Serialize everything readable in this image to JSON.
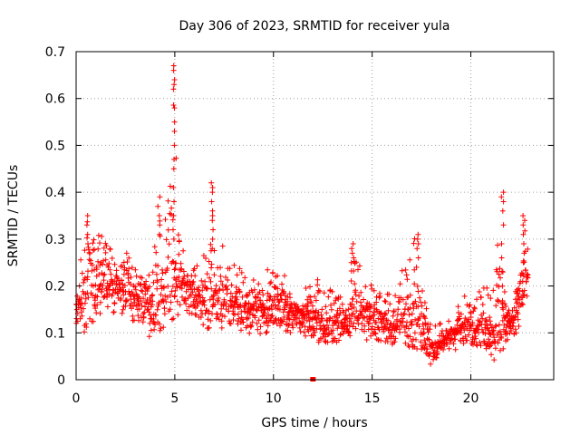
{
  "chart_data": {
    "type": "scatter",
    "title": "Day 306 of 2023, SRMTID for receiver yula",
    "xlabel": "GPS time / hours",
    "ylabel": "SRMTID / TECUs",
    "xlim": [
      0,
      24.2
    ],
    "ylim": [
      0,
      0.7
    ],
    "xticks": [
      0,
      5,
      10,
      15,
      20
    ],
    "xtick_labels": [
      "0",
      "5",
      "10",
      "15",
      "20"
    ],
    "yticks": [
      0,
      0.1,
      0.2,
      0.3,
      0.4,
      0.5,
      0.6,
      0.7
    ],
    "ytick_labels": [
      "0",
      "0.1",
      "0.2",
      "0.3",
      "0.4",
      "0.5",
      "0.6",
      "0.7"
    ],
    "grid": true,
    "marker": "+",
    "color": "#ff0000",
    "series": [
      {
        "name": "SRMTID",
        "envelope": {
          "x": [
            0.0,
            0.3,
            0.6,
            1.0,
            1.4,
            1.8,
            2.2,
            2.6,
            3.0,
            3.4,
            3.8,
            4.2,
            4.6,
            4.9,
            5.2,
            5.6,
            6.0,
            6.4,
            6.8,
            7.0,
            7.4,
            7.8,
            8.2,
            8.6,
            9.0,
            9.4,
            9.8,
            10.2,
            10.6,
            11.0,
            11.4,
            11.8,
            12.2,
            12.6,
            13.0,
            13.4,
            13.8,
            14.0,
            14.4,
            14.8,
            15.2,
            15.6,
            16.0,
            16.4,
            16.8,
            17.2,
            17.6,
            18.0,
            18.4,
            18.8,
            19.2,
            19.6,
            20.0,
            20.4,
            20.8,
            21.2,
            21.4,
            21.8,
            22.2,
            22.6,
            22.9
          ],
          "low": [
            0.1,
            0.09,
            0.12,
            0.12,
            0.13,
            0.14,
            0.13,
            0.12,
            0.11,
            0.1,
            0.09,
            0.1,
            0.12,
            0.13,
            0.14,
            0.14,
            0.12,
            0.11,
            0.11,
            0.12,
            0.11,
            0.1,
            0.1,
            0.1,
            0.09,
            0.09,
            0.09,
            0.1,
            0.1,
            0.1,
            0.09,
            0.08,
            0.08,
            0.08,
            0.08,
            0.08,
            0.09,
            0.1,
            0.1,
            0.08,
            0.08,
            0.08,
            0.07,
            0.07,
            0.07,
            0.07,
            0.05,
            0.03,
            0.05,
            0.06,
            0.06,
            0.07,
            0.07,
            0.07,
            0.06,
            0.04,
            0.06,
            0.07,
            0.09,
            0.13,
            0.17
          ],
          "high": [
            0.2,
            0.27,
            0.35,
            0.32,
            0.31,
            0.28,
            0.28,
            0.27,
            0.25,
            0.24,
            0.3,
            0.36,
            0.34,
            0.67,
            0.3,
            0.27,
            0.24,
            0.25,
            0.42,
            0.32,
            0.3,
            0.25,
            0.24,
            0.23,
            0.22,
            0.22,
            0.24,
            0.24,
            0.22,
            0.2,
            0.19,
            0.2,
            0.24,
            0.2,
            0.19,
            0.18,
            0.17,
            0.29,
            0.24,
            0.22,
            0.21,
            0.18,
            0.21,
            0.23,
            0.24,
            0.31,
            0.19,
            0.11,
            0.12,
            0.12,
            0.15,
            0.18,
            0.18,
            0.19,
            0.2,
            0.19,
            0.4,
            0.17,
            0.2,
            0.3,
            0.35
          ]
        },
        "center": [
          0.15,
          0.17,
          0.2,
          0.21,
          0.21,
          0.21,
          0.2,
          0.19,
          0.17,
          0.16,
          0.16,
          0.18,
          0.2,
          0.22,
          0.21,
          0.2,
          0.18,
          0.17,
          0.18,
          0.18,
          0.17,
          0.16,
          0.16,
          0.15,
          0.15,
          0.15,
          0.15,
          0.15,
          0.15,
          0.14,
          0.14,
          0.13,
          0.13,
          0.12,
          0.12,
          0.12,
          0.12,
          0.16,
          0.15,
          0.14,
          0.13,
          0.12,
          0.12,
          0.13,
          0.13,
          0.14,
          0.1,
          0.06,
          0.08,
          0.09,
          0.1,
          0.11,
          0.11,
          0.11,
          0.11,
          0.09,
          0.12,
          0.11,
          0.13,
          0.19,
          0.24
        ],
        "spikes": [
          {
            "x": 4.95,
            "values": [
              0.67,
              0.66,
              0.64,
              0.63,
              0.62,
              0.58,
              0.55,
              0.53,
              0.5,
              0.47,
              0.45,
              0.41,
              0.38,
              0.35,
              0.32,
              0.3
            ]
          },
          {
            "x": 6.9,
            "values": [
              0.42,
              0.41,
              0.4,
              0.38,
              0.36,
              0.35,
              0.34,
              0.32,
              0.3,
              0.28
            ]
          },
          {
            "x": 21.6,
            "values": [
              0.4,
              0.39,
              0.38,
              0.36,
              0.33,
              0.29,
              0.26,
              0.23,
              0.2
            ]
          },
          {
            "x": 22.7,
            "values": [
              0.35,
              0.34,
              0.33,
              0.31,
              0.29,
              0.27,
              0.25
            ]
          },
          {
            "x": 4.2,
            "values": [
              0.39,
              0.37,
              0.35,
              0.33,
              0.31
            ]
          },
          {
            "x": 0.6,
            "values": [
              0.35,
              0.33,
              0.31,
              0.29
            ]
          },
          {
            "x": 17.3,
            "values": [
              0.31,
              0.3,
              0.29,
              0.28,
              0.26,
              0.24
            ]
          },
          {
            "x": 14.0,
            "values": [
              0.29,
              0.28,
              0.27,
              0.26,
              0.25
            ]
          }
        ],
        "outliers": [
          {
            "x": 12.0,
            "y": 0.0
          }
        ]
      }
    ]
  }
}
